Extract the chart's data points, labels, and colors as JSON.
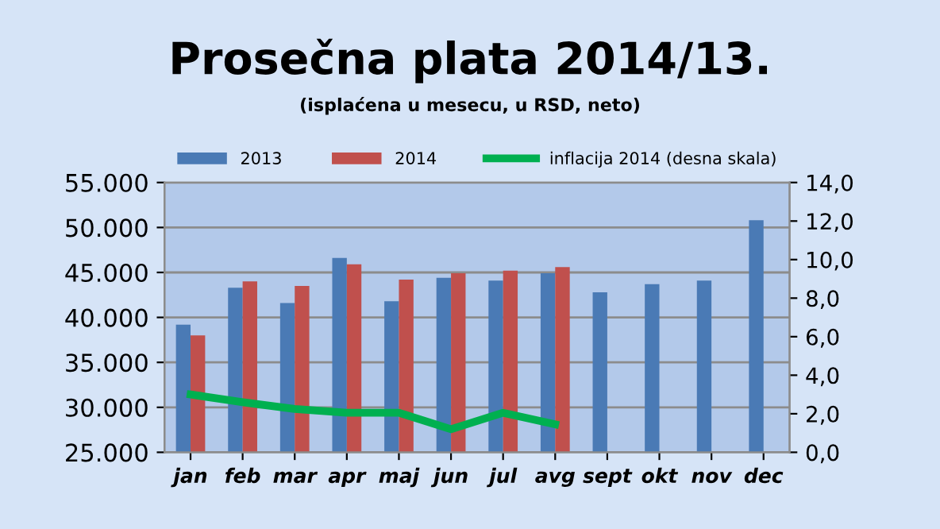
{
  "chart_data": {
    "type": "bar",
    "title": "Prosečna plata 2014/13.",
    "subtitle": "(isplaćena u mesecu, u RSD, neto)",
    "categories": [
      "jan",
      "feb",
      "mar",
      "apr",
      "maj",
      "jun",
      "jul",
      "avg",
      "sept",
      "okt",
      "nov",
      "dec"
    ],
    "series": [
      {
        "name": "2013",
        "color": "#4a7ab5",
        "values": [
          39200,
          43300,
          41600,
          46600,
          41800,
          44400,
          44100,
          44900,
          42800,
          43700,
          44100,
          50800
        ]
      },
      {
        "name": "2014",
        "color": "#c0504d",
        "values": [
          38000,
          44000,
          43500,
          45900,
          44200,
          44900,
          45200,
          45600,
          null,
          null,
          null,
          null
        ]
      },
      {
        "name": "inflacija 2014 (desna skala)",
        "type": "line",
        "axis": "y2",
        "color": "#00b050",
        "values": [
          3.0,
          2.6,
          2.25,
          2.05,
          2.05,
          1.2,
          2.05,
          1.45,
          null,
          null,
          null,
          null
        ]
      }
    ],
    "ylim": [
      25000,
      55000
    ],
    "yticks": [
      {
        "value": 25000,
        "label": "25.000"
      },
      {
        "value": 30000,
        "label": "30.000"
      },
      {
        "value": 35000,
        "label": "35.000"
      },
      {
        "value": 40000,
        "label": "40.000"
      },
      {
        "value": 45000,
        "label": "45.000"
      },
      {
        "value": 50000,
        "label": "50.000"
      },
      {
        "value": 55000,
        "label": "55.000"
      }
    ],
    "y2lim": [
      0,
      14
    ],
    "y2ticks": [
      {
        "value": 0,
        "label": "0,0"
      },
      {
        "value": 2,
        "label": "2,0"
      },
      {
        "value": 4,
        "label": "4,0"
      },
      {
        "value": 6,
        "label": "6,0"
      },
      {
        "value": 8,
        "label": "8,0"
      },
      {
        "value": 10,
        "label": "10,0"
      },
      {
        "value": 12,
        "label": "12,0"
      },
      {
        "value": 14,
        "label": "14,0"
      }
    ],
    "grid": "y",
    "legend": "top"
  }
}
